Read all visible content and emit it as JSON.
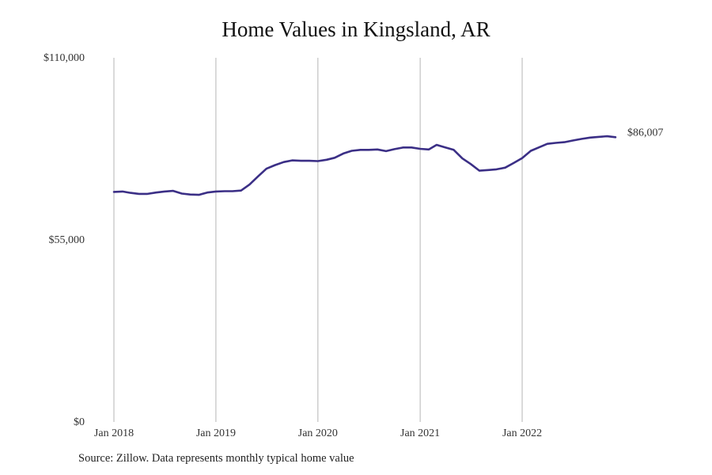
{
  "chart_data": {
    "type": "line",
    "title": "Home Values in Kingsland, AR",
    "xlabel": "",
    "ylabel": "",
    "ylim": [
      0,
      110000
    ],
    "y_ticks": [
      0,
      55000,
      110000
    ],
    "y_tick_labels": [
      "$0",
      "$55,000",
      "$110,000"
    ],
    "x_ticks": [
      "2018-01",
      "2019-01",
      "2020-01",
      "2021-01",
      "2022-01"
    ],
    "x_tick_labels": [
      "Jan 2018",
      "Jan 2019",
      "Jan 2020",
      "Jan 2021",
      "Jan 2022"
    ],
    "grid": "vertical",
    "line_color": "#3b2f86",
    "end_label": "$86,007",
    "series": [
      {
        "name": "",
        "x": [
          "2018-01",
          "2018-02",
          "2018-03",
          "2018-04",
          "2018-05",
          "2018-06",
          "2018-07",
          "2018-08",
          "2018-09",
          "2018-10",
          "2018-11",
          "2018-12",
          "2019-01",
          "2019-02",
          "2019-03",
          "2019-04",
          "2019-05",
          "2019-06",
          "2019-07",
          "2019-08",
          "2019-09",
          "2019-10",
          "2019-11",
          "2019-12",
          "2020-01",
          "2020-02",
          "2020-03",
          "2020-04",
          "2020-05",
          "2020-06",
          "2020-07",
          "2020-08",
          "2020-09",
          "2020-10",
          "2020-11",
          "2020-12",
          "2021-01",
          "2021-02",
          "2021-03",
          "2021-04",
          "2021-05",
          "2021-06",
          "2021-07",
          "2021-08",
          "2021-09",
          "2021-10",
          "2021-11",
          "2021-12",
          "2022-01",
          "2022-02",
          "2022-03",
          "2022-04",
          "2022-05",
          "2022-06",
          "2022-07",
          "2022-08",
          "2022-09",
          "2022-10",
          "2022-11",
          "2022-12"
        ],
        "values": [
          69500,
          69600,
          69200,
          68900,
          68900,
          69300,
          69600,
          69800,
          69000,
          68700,
          68600,
          69300,
          69600,
          69700,
          69700,
          69900,
          71700,
          74200,
          76500,
          77600,
          78500,
          79000,
          78900,
          78900,
          78800,
          79200,
          79800,
          81100,
          81900,
          82200,
          82200,
          82300,
          81800,
          82400,
          82900,
          82900,
          82500,
          82300,
          83700,
          82900,
          82200,
          79600,
          77900,
          75900,
          76100,
          76300,
          76800,
          78200,
          79700,
          81900,
          82900,
          84000,
          84300,
          84500,
          85000,
          85500,
          85900,
          86100,
          86300,
          86007
        ]
      }
    ]
  },
  "source_note": "Source: Zillow. Data represents monthly typical home value"
}
